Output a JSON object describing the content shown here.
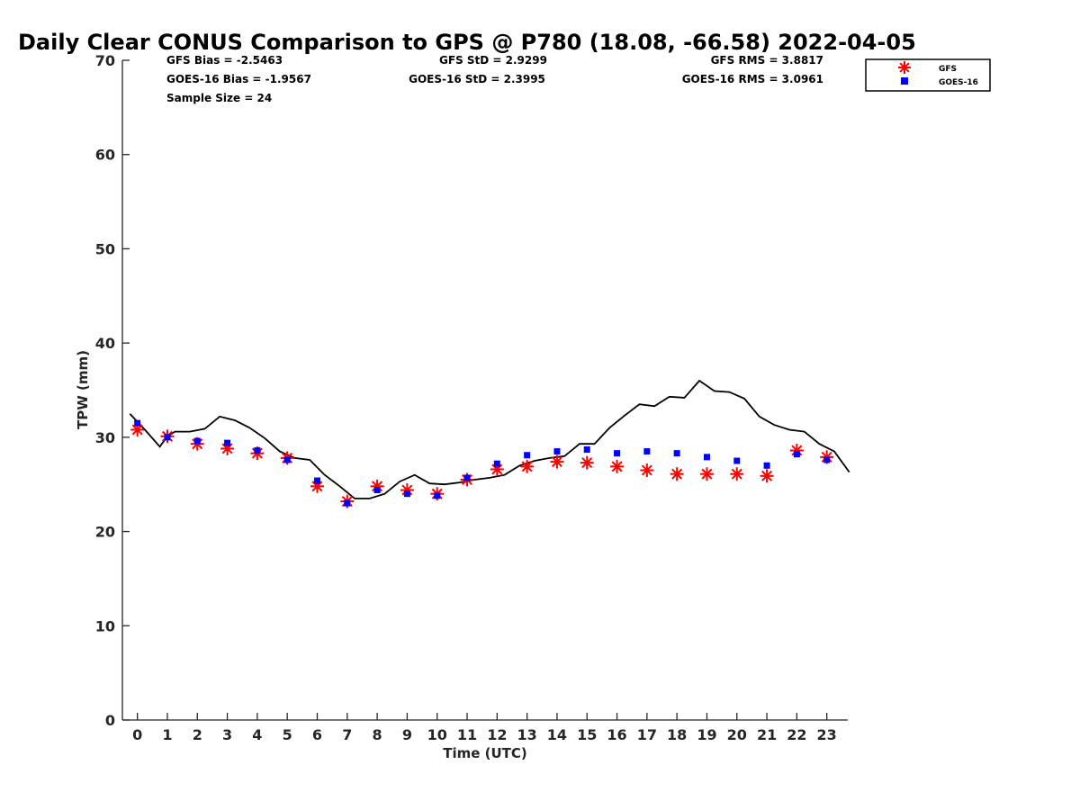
{
  "colors": {
    "gfs": "#ff0000",
    "goes": "#0000ff",
    "gps_line": "#000000",
    "axis": "#262626"
  },
  "stats": {
    "gfs_bias": "GFS Bias = -2.5463",
    "goes_bias": "GOES-16 Bias = -1.9567",
    "sample_size": "Sample Size = 24",
    "gfs_std": "GFS StD = 2.9299",
    "goes_std": "GOES-16 StD = 2.3995",
    "gfs_rms": "GFS RMS = 3.8817",
    "goes_rms": "GOES-16 RMS = 3.0961"
  },
  "chart_data": {
    "type": "scatter",
    "title": "Daily Clear CONUS Comparison to GPS @ P780 (18.08, -66.58) 2022-04-05",
    "xlabel": "Time (UTC)",
    "ylabel": "TPW (mm)",
    "xlim": [
      -0.5,
      23.7
    ],
    "ylim": [
      0,
      70
    ],
    "xticks": [
      0,
      1,
      2,
      3,
      4,
      5,
      6,
      7,
      8,
      9,
      10,
      11,
      12,
      13,
      14,
      15,
      16,
      17,
      18,
      19,
      20,
      21,
      22,
      23
    ],
    "yticks": [
      0,
      10,
      20,
      30,
      40,
      50,
      60,
      70
    ],
    "grid": false,
    "legend_position": "top-right",
    "series": [
      {
        "name": "GFS",
        "marker": "asterisk",
        "x": [
          0,
          1,
          2,
          3,
          4,
          5,
          6,
          7,
          8,
          9,
          10,
          11,
          12,
          13,
          14,
          15,
          16,
          17,
          18,
          19,
          20,
          21,
          22,
          23
        ],
        "y": [
          30.8,
          30.1,
          29.3,
          28.8,
          28.3,
          27.8,
          24.8,
          23.2,
          24.8,
          24.4,
          24.0,
          25.5,
          26.6,
          26.9,
          27.4,
          27.3,
          26.9,
          26.5,
          26.1,
          26.1,
          26.1,
          25.9,
          28.6,
          27.9
        ]
      },
      {
        "name": "GOES-16",
        "marker": "square",
        "x": [
          0,
          1,
          2,
          3,
          4,
          5,
          6,
          7,
          8,
          9,
          10,
          11,
          12,
          13,
          14,
          15,
          16,
          17,
          18,
          19,
          20,
          21,
          22,
          23
        ],
        "y": [
          31.5,
          30.0,
          29.6,
          29.4,
          28.6,
          27.6,
          25.4,
          23.0,
          24.4,
          24.0,
          23.8,
          25.7,
          27.2,
          28.1,
          28.5,
          28.7,
          28.3,
          28.5,
          28.3,
          27.9,
          27.5,
          27.0,
          28.2,
          27.6
        ]
      },
      {
        "marker": "line",
        "x": [
          -0.25,
          0.25,
          0.75,
          1.0,
          1.25,
          1.75,
          2.25,
          2.75,
          3.25,
          3.75,
          4.25,
          4.75,
          5.25,
          5.75,
          6.25,
          6.75,
          7.25,
          7.75,
          8.25,
          8.75,
          9.25,
          9.75,
          10.25,
          10.75,
          11.25,
          11.75,
          12.25,
          12.75,
          13.25,
          13.75,
          14.25,
          14.75,
          15.25,
          15.75,
          16.25,
          16.75,
          17.25,
          17.75,
          18.25,
          18.75,
          19.25,
          19.75,
          20.25,
          20.75,
          21.25,
          21.75,
          22.25,
          22.75,
          23.25,
          23.75
        ],
        "y": [
          32.5,
          30.8,
          29.0,
          30.1,
          30.6,
          30.6,
          30.9,
          32.2,
          31.8,
          31.0,
          29.9,
          28.5,
          27.8,
          27.6,
          26.0,
          24.8,
          23.5,
          23.5,
          24.0,
          25.3,
          26.0,
          25.1,
          25.0,
          25.2,
          25.5,
          25.7,
          26.0,
          27.0,
          27.5,
          27.8,
          28.0,
          29.3,
          29.3,
          31.0,
          32.3,
          33.5,
          33.3,
          34.3,
          34.2,
          36.0,
          34.9,
          34.8,
          34.1,
          32.2,
          31.3,
          30.8,
          30.6,
          29.3,
          28.5,
          26.3
        ]
      }
    ]
  }
}
